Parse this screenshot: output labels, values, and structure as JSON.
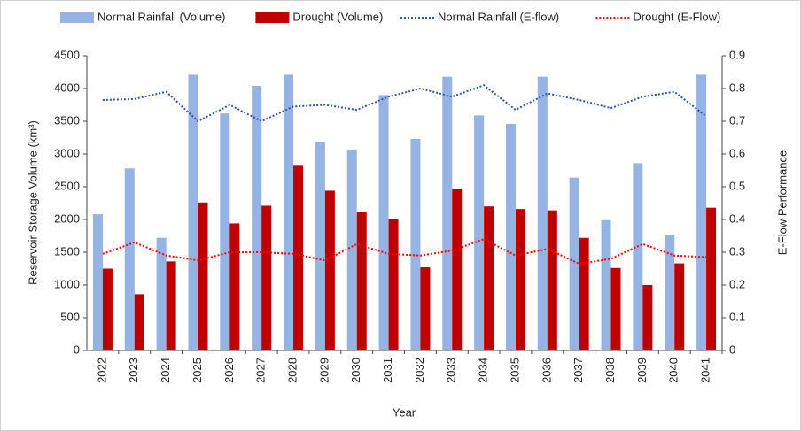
{
  "chart_data": {
    "type": "bar",
    "categories": [
      "2022",
      "2023",
      "2024",
      "2025",
      "2026",
      "2027",
      "2028",
      "2029",
      "2030",
      "2031",
      "2032",
      "2033",
      "2034",
      "2035",
      "2036",
      "2037",
      "2038",
      "2039",
      "2040",
      "2041"
    ],
    "series": [
      {
        "name": "Normal Rainfall (Volume)",
        "type": "bar",
        "color": "#95b3e3",
        "values": [
          2080,
          2780,
          1720,
          4210,
          3620,
          4040,
          4210,
          3180,
          3070,
          3900,
          3230,
          4180,
          3590,
          3460,
          4180,
          2640,
          1990,
          2860,
          1770,
          4210
        ]
      },
      {
        "name": "Drought (Volume)",
        "type": "bar",
        "color": "#c00000",
        "values": [
          1250,
          860,
          1360,
          2260,
          1940,
          2210,
          2820,
          2440,
          2120,
          2000,
          1270,
          2470,
          2200,
          2160,
          2140,
          1720,
          1260,
          1000,
          1330,
          2180
        ]
      },
      {
        "name": "Normal Rainfall (E-flow)",
        "type": "line",
        "line_style": "dotted",
        "axis": "y2",
        "color": "#2f55a4",
        "values": [
          0.765,
          0.768,
          0.79,
          0.7,
          0.75,
          0.7,
          0.745,
          0.75,
          0.735,
          0.775,
          0.8,
          0.775,
          0.81,
          0.735,
          0.785,
          0.765,
          0.74,
          0.775,
          0.79,
          0.715
        ]
      },
      {
        "name": "Drought (E-Flow)",
        "type": "line",
        "line_style": "dotted",
        "axis": "y2",
        "color": "#ff0000",
        "values": [
          0.295,
          0.33,
          0.29,
          0.275,
          0.3,
          0.3,
          0.295,
          0.275,
          0.325,
          0.295,
          0.29,
          0.305,
          0.34,
          0.29,
          0.31,
          0.265,
          0.28,
          0.325,
          0.29,
          0.285
        ]
      }
    ],
    "x_label": "Year",
    "y_label": "Reservoir Storage Volume (km³)",
    "y2_label": "E-Flow Performance",
    "ylim": [
      0,
      4500
    ],
    "yticks": [
      0,
      500,
      1000,
      1500,
      2000,
      2500,
      3000,
      3500,
      4000,
      4500
    ],
    "y2lim": [
      0,
      0.9
    ],
    "y2ticks": [
      0,
      0.1,
      0.2,
      0.3,
      0.4,
      0.5,
      0.6,
      0.7,
      0.8,
      0.9
    ],
    "legend": "top"
  }
}
